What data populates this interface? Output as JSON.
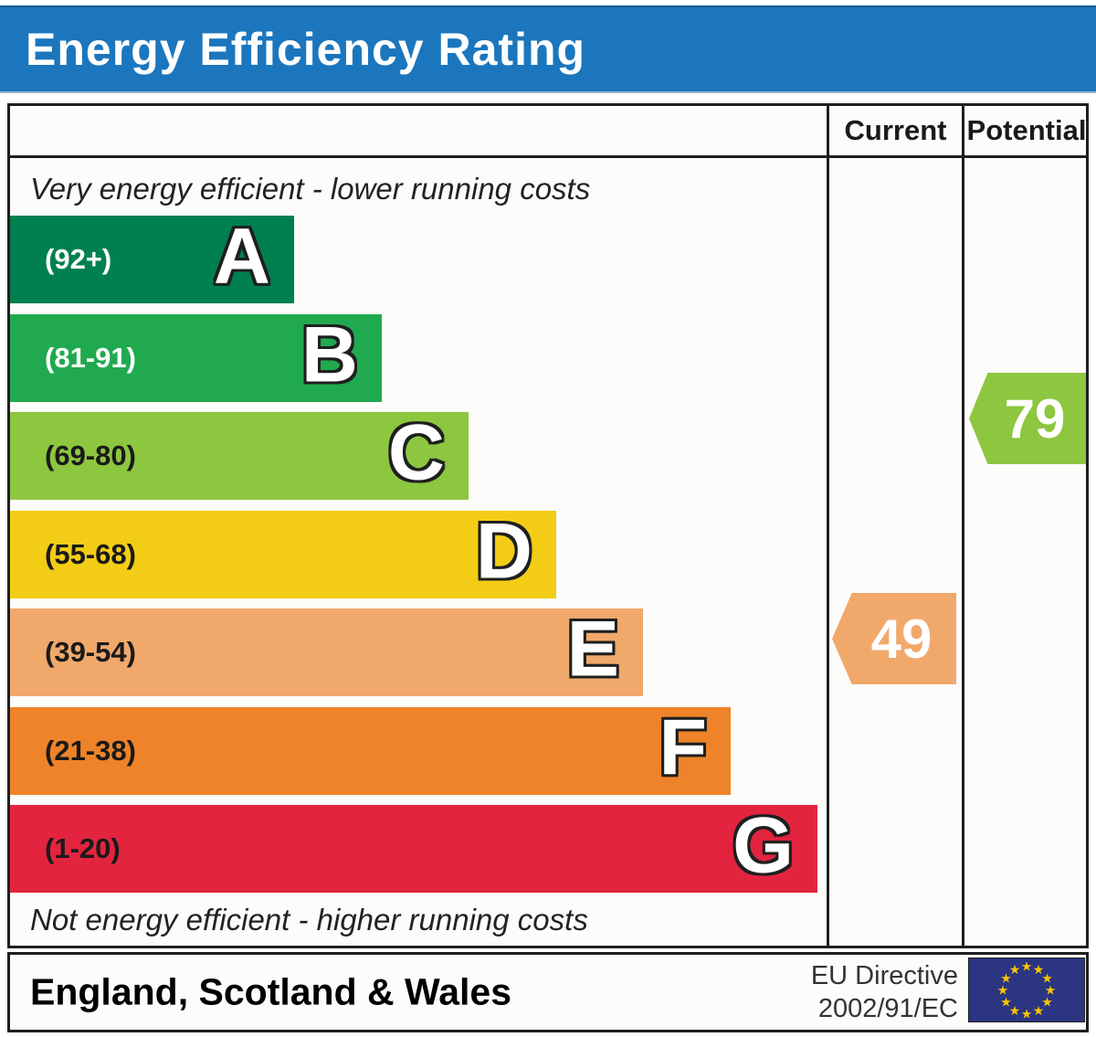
{
  "title": "Energy Efficiency Rating",
  "columns": {
    "current": "Current",
    "potential": "Potential"
  },
  "top_note": "Very energy efficient - lower running costs",
  "bottom_note": "Not energy efficient - higher running costs",
  "bands": [
    {
      "letter": "A",
      "range": "(92+)",
      "color": "#00804f",
      "label_color": "#ffffff"
    },
    {
      "letter": "B",
      "range": "(81-91)",
      "color": "#21a94f",
      "label_color": "#ffffff"
    },
    {
      "letter": "C",
      "range": "(69-80)",
      "color": "#8dc63f",
      "label_color": "#1a1a1a"
    },
    {
      "letter": "D",
      "range": "(55-68)",
      "color": "#f3cd15",
      "label_color": "#1a1a1a"
    },
    {
      "letter": "E",
      "range": "(39-54)",
      "color": "#f1a86b",
      "label_color": "#1a1a1a"
    },
    {
      "letter": "F",
      "range": "(21-38)",
      "color": "#ee8329",
      "label_color": "#1a1a1a"
    },
    {
      "letter": "G",
      "range": "(1-20)",
      "color": "#e3243f",
      "label_color": "#1a1a1a"
    }
  ],
  "current": {
    "value": "49",
    "band": "E",
    "color": "#f1a86b"
  },
  "potential": {
    "value": "79",
    "band": "C",
    "color": "#8dc63f"
  },
  "footer": {
    "region": "England, Scotland & Wales",
    "directive_line1": "EU Directive",
    "directive_line2": "2002/91/EC",
    "flag_icon": "eu-flag-icon",
    "flag_bg": "#2b3582",
    "flag_star_color": "#fcc500"
  },
  "chart_data": {
    "type": "bar",
    "title": "Energy Efficiency Rating",
    "categories": [
      "A",
      "B",
      "C",
      "D",
      "E",
      "F",
      "G"
    ],
    "band_ranges": [
      "92+",
      "81-91",
      "69-80",
      "55-68",
      "39-54",
      "21-38",
      "1-20"
    ],
    "band_colors": [
      "#00804f",
      "#21a94f",
      "#8dc63f",
      "#f3cd15",
      "#f1a86b",
      "#ee8329",
      "#e3243f"
    ],
    "bar_widths_relative": [
      0.35,
      0.46,
      0.56,
      0.67,
      0.78,
      0.88,
      0.99
    ],
    "current_rating": 49,
    "current_band": "E",
    "potential_rating": 79,
    "potential_band": "C",
    "scale_max": 100,
    "region": "England, Scotland & Wales",
    "directive": "EU Directive 2002/91/EC",
    "top_annotation": "Very energy efficient - lower running costs",
    "bottom_annotation": "Not energy efficient - higher running costs",
    "legend_position": "none",
    "grid": false
  }
}
